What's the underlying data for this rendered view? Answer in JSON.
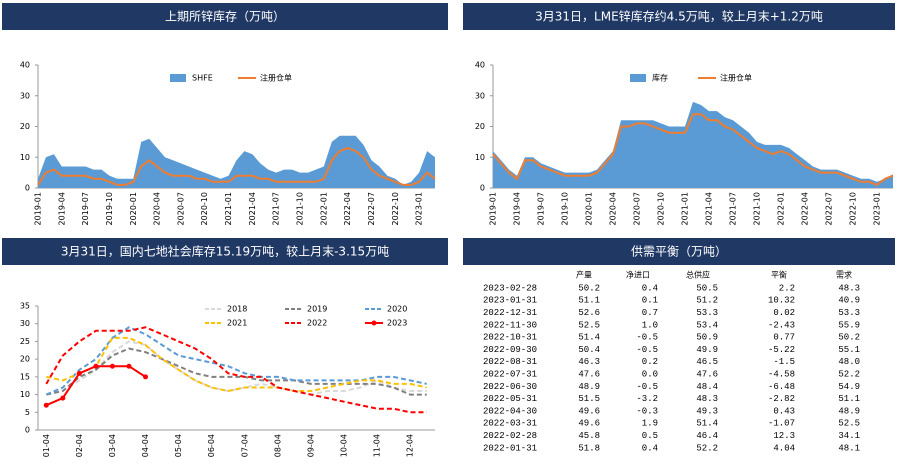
{
  "chart_data": [
    {
      "type": "area",
      "title": "上期所锌库存（万吨）",
      "ylim": [
        0,
        40
      ],
      "yticks": [
        0,
        10,
        20,
        30,
        40
      ],
      "legend": "top",
      "categories": [
        "2019-01",
        null,
        null,
        "2019-04",
        null,
        null,
        "2019-07",
        null,
        null,
        "2019-10",
        null,
        null,
        "2020-01",
        null,
        null,
        "2020-04",
        null,
        null,
        "2020-07",
        null,
        null,
        "2020-10",
        null,
        null,
        "2021-01",
        null,
        null,
        "2021-04",
        null,
        null,
        "2021-07",
        null,
        null,
        "2021-10",
        null,
        null,
        "2022-01",
        null,
        null,
        "2022-04",
        null,
        null,
        "2022-07",
        null,
        null,
        "2022-10",
        null,
        null,
        "2023-01",
        null,
        null
      ],
      "series": [
        {
          "name": "SHFE",
          "color": "#5b9bd5",
          "style": "area",
          "values": [
            3,
            10,
            11,
            7,
            7,
            7,
            7,
            6,
            6,
            4,
            3,
            3,
            3,
            15,
            16,
            13,
            10,
            9,
            8,
            7,
            6,
            5,
            4,
            3,
            4,
            9,
            12,
            11,
            8,
            6,
            5,
            6,
            6,
            5,
            5,
            6,
            7,
            15,
            17,
            17,
            17,
            14,
            9,
            7,
            4,
            3,
            1,
            2,
            5,
            12,
            10
          ]
        },
        {
          "name": "注册仓单",
          "color": "#ed7d31",
          "style": "line",
          "values": [
            1,
            5,
            6,
            4,
            4,
            4,
            4,
            3,
            3,
            2,
            1,
            1,
            2,
            7,
            9,
            7,
            5,
            4,
            4,
            4,
            3,
            3,
            2,
            2,
            2,
            4,
            4,
            4,
            3,
            3,
            2,
            2,
            2,
            2,
            2,
            2,
            3,
            9,
            12,
            13,
            12,
            10,
            6,
            4,
            3,
            2,
            1,
            1,
            2,
            5,
            3
          ]
        }
      ]
    },
    {
      "type": "area",
      "title": "3月31日，LME锌库存约4.5万吨，较上月末+1.2万吨",
      "ylim": [
        0,
        40
      ],
      "yticks": [
        0,
        10,
        20,
        30,
        40
      ],
      "legend": "top",
      "categories": [
        "2019-01",
        null,
        null,
        "2019-04",
        null,
        null,
        "2019-07",
        null,
        null,
        "2019-10",
        null,
        null,
        "2020-01",
        null,
        null,
        "2020-04",
        null,
        null,
        "2020-07",
        null,
        null,
        "2020-10",
        null,
        null,
        "2021-01",
        null,
        null,
        "2021-04",
        null,
        null,
        "2021-07",
        null,
        null,
        "2021-10",
        null,
        null,
        "2022-01",
        null,
        null,
        "2022-04",
        null,
        null,
        "2022-07",
        null,
        null,
        "2022-10",
        null,
        null,
        "2023-01",
        null,
        null
      ],
      "series": [
        {
          "name": "库存",
          "color": "#5b9bd5",
          "style": "area",
          "values": [
            12,
            9,
            6,
            4,
            10,
            10,
            8,
            7,
            6,
            5,
            5,
            5,
            5,
            6,
            9,
            12,
            22,
            22,
            22,
            22,
            22,
            21,
            20,
            20,
            20,
            28,
            27,
            25,
            25,
            23,
            22,
            20,
            18,
            15,
            14,
            14,
            14,
            13,
            11,
            9,
            7,
            6,
            6,
            6,
            5,
            4,
            3,
            3,
            2,
            3,
            4.5
          ]
        },
        {
          "name": "注册仓单",
          "color": "#ed7d31",
          "style": "line",
          "values": [
            11,
            8,
            5,
            3,
            9,
            9,
            7,
            6,
            5,
            4,
            4,
            4,
            4,
            5,
            8,
            11,
            20,
            20,
            21,
            21,
            20,
            19,
            18,
            18,
            18,
            24,
            24,
            22,
            22,
            20,
            19,
            17,
            15,
            13,
            12,
            11,
            12,
            11,
            9,
            7,
            6,
            5,
            5,
            5,
            4,
            3,
            2,
            2,
            1,
            3,
            4
          ]
        }
      ]
    },
    {
      "type": "line",
      "title": "3月31日，国内七地社会库存15.19万吨，较上月末-3.15万吨",
      "ylim": [
        0,
        35
      ],
      "yticks": [
        0,
        5,
        10,
        15,
        20,
        25,
        30,
        35
      ],
      "legend": "top",
      "categories": [
        "01-04",
        null,
        "02-04",
        null,
        "03-04",
        null,
        "04-04",
        null,
        "05-04",
        null,
        "06-04",
        null,
        "07-04",
        null,
        "08-04",
        null,
        "09-04",
        null,
        "10-04",
        null,
        "11-04",
        null,
        "12-04",
        null
      ],
      "series": [
        {
          "name": "2018",
          "color": "#d9d9d9",
          "dash": true,
          "values": [
            10,
            11,
            14,
            17,
            22,
            25,
            24,
            20,
            17,
            14,
            12,
            11,
            12,
            13,
            12,
            11,
            10,
            11,
            11,
            12,
            14,
            12,
            11,
            11
          ]
        },
        {
          "name": "2019",
          "color": "#808080",
          "dash": true,
          "values": [
            10,
            11,
            15,
            17,
            21,
            23,
            22,
            20,
            18,
            16,
            15,
            15,
            15,
            14,
            14,
            14,
            13,
            13,
            13,
            13,
            13,
            12,
            10,
            10
          ]
        },
        {
          "name": "2020",
          "color": "#5b9bd5",
          "dash": true,
          "values": [
            10,
            12,
            17,
            20,
            26,
            29,
            27,
            24,
            21,
            20,
            19,
            18,
            16,
            15,
            15,
            14,
            14,
            14,
            14,
            14,
            15,
            15,
            14,
            13
          ]
        },
        {
          "name": "2021",
          "color": "#ffc000",
          "dash": true,
          "values": [
            15,
            14,
            16,
            18,
            26,
            26,
            24,
            20,
            17,
            14,
            12,
            11,
            12,
            12,
            12,
            11,
            11,
            12,
            13,
            14,
            14,
            13,
            13,
            12
          ]
        },
        {
          "name": "2022",
          "color": "#ff0000",
          "dash": true,
          "values": [
            13,
            21,
            25,
            28,
            28,
            28,
            29,
            27,
            25,
            23,
            20,
            16,
            15,
            15,
            12,
            11,
            10,
            9,
            8,
            7,
            6,
            6,
            5,
            5
          ]
        },
        {
          "name": "2023",
          "color": "#ff0000",
          "dash": false,
          "marker": true,
          "values": [
            7,
            9,
            16,
            18,
            18,
            18,
            15,
            null,
            null,
            null,
            null,
            null,
            null,
            null,
            null,
            null,
            null,
            null,
            null,
            null,
            null,
            null,
            null,
            null
          ]
        }
      ]
    }
  ],
  "table": {
    "title": "供需平衡（万吨）",
    "columns": [
      "产量",
      "净进口",
      "总供应",
      "平衡",
      "需求"
    ],
    "rows": [
      [
        "2023-02-28",
        "50.2",
        "0.4",
        "50.5",
        "2.2",
        "48.3"
      ],
      [
        "2023-01-31",
        "51.1",
        "0.1",
        "51.2",
        "10.32",
        "40.9"
      ],
      [
        "2022-12-31",
        "52.6",
        "0.7",
        "53.3",
        "0.02",
        "53.3"
      ],
      [
        "2022-11-30",
        "52.5",
        "1.0",
        "53.4",
        "-2.43",
        "55.9"
      ],
      [
        "2022-10-31",
        "51.4",
        "-0.5",
        "50.9",
        "0.77",
        "50.2"
      ],
      [
        "2022-09-30",
        "50.4",
        "-0.5",
        "49.9",
        "-5.22",
        "55.1"
      ],
      [
        "2022-08-31",
        "46.3",
        "0.2",
        "46.5",
        "-1.5",
        "48.0"
      ],
      [
        "2022-07-31",
        "47.6",
        "0.0",
        "47.6",
        "-4.58",
        "52.2"
      ],
      [
        "2022-06-30",
        "48.9",
        "-0.5",
        "48.4",
        "-6.48",
        "54.9"
      ],
      [
        "2022-05-31",
        "51.5",
        "-3.2",
        "48.3",
        "-2.82",
        "51.1"
      ],
      [
        "2022-04-30",
        "49.6",
        "-0.3",
        "49.3",
        "0.43",
        "48.9"
      ],
      [
        "2022-03-31",
        "49.6",
        "1.9",
        "51.4",
        "-1.07",
        "52.5"
      ],
      [
        "2022-02-28",
        "45.8",
        "0.5",
        "46.4",
        "12.3",
        "34.1"
      ],
      [
        "2022-01-31",
        "51.8",
        "0.4",
        "52.2",
        "4.04",
        "48.1"
      ]
    ]
  }
}
